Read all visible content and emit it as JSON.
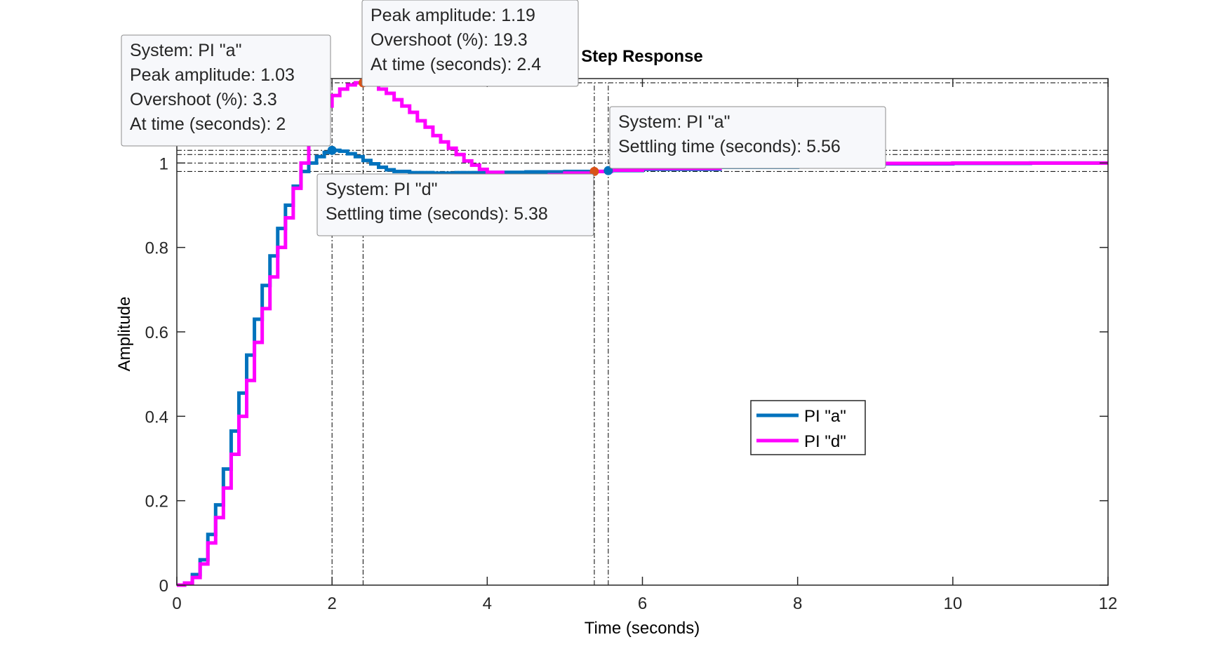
{
  "chart_data": {
    "type": "line",
    "title": "Step Response",
    "xlabel": "Time (seconds)",
    "ylabel": "Amplitude",
    "xlim": [
      0,
      12
    ],
    "ylim": [
      0,
      1.2
    ],
    "xticks": [
      0,
      2,
      4,
      6,
      8,
      10,
      12
    ],
    "yticks": [
      0,
      0.2,
      0.4,
      0.6,
      0.8,
      1
    ],
    "grid": false,
    "legend_position": "center-right",
    "series": [
      {
        "name": "PI \"a\"",
        "color": "#0072BD",
        "style": "stairs",
        "sample_time": 0.1,
        "x": [
          0,
          0.1,
          0.2,
          0.3,
          0.4,
          0.5,
          0.6,
          0.7,
          0.8,
          0.9,
          1.0,
          1.1,
          1.2,
          1.3,
          1.4,
          1.5,
          1.6,
          1.7,
          1.8,
          1.9,
          2.0,
          2.1,
          2.2,
          2.3,
          2.4,
          2.5,
          2.6,
          2.7,
          2.8,
          3.0,
          3.3,
          3.6,
          4.0,
          4.5,
          5.0,
          5.56,
          6.0,
          7.0,
          8.0,
          9.0,
          10.0,
          11.0,
          12.0
        ],
        "y": [
          0,
          0.005,
          0.025,
          0.06,
          0.12,
          0.19,
          0.275,
          0.365,
          0.455,
          0.545,
          0.63,
          0.71,
          0.78,
          0.845,
          0.9,
          0.945,
          0.98,
          1.0,
          1.015,
          1.025,
          1.03,
          1.028,
          1.022,
          1.015,
          1.006,
          0.998,
          0.99,
          0.984,
          0.98,
          0.977,
          0.976,
          0.977,
          0.978,
          0.979,
          0.98,
          0.982,
          0.985,
          0.99,
          0.995,
          0.998,
          0.999,
          1.0,
          1.0
        ]
      },
      {
        "name": "PI \"d\"",
        "color": "#FF00FF",
        "style": "stairs",
        "sample_time": 0.1,
        "x": [
          0,
          0.1,
          0.2,
          0.3,
          0.4,
          0.5,
          0.6,
          0.7,
          0.8,
          0.9,
          1.0,
          1.1,
          1.2,
          1.3,
          1.4,
          1.5,
          1.6,
          1.7,
          1.8,
          1.9,
          2.0,
          2.1,
          2.2,
          2.3,
          2.4,
          2.5,
          2.6,
          2.7,
          2.8,
          2.9,
          3.0,
          3.1,
          3.2,
          3.3,
          3.4,
          3.5,
          3.6,
          3.7,
          3.8,
          3.9,
          4.0,
          4.2,
          4.4,
          4.6,
          4.8,
          5.0,
          5.38,
          5.6,
          6.0,
          7.0,
          8.0,
          9.0,
          10.0,
          11.0,
          12.0
        ],
        "y": [
          0,
          0.005,
          0.018,
          0.05,
          0.1,
          0.16,
          0.23,
          0.31,
          0.4,
          0.485,
          0.575,
          0.655,
          0.73,
          0.8,
          0.87,
          0.94,
          1.0,
          1.055,
          1.1,
          1.135,
          1.16,
          1.175,
          1.185,
          1.19,
          1.19,
          1.185,
          1.175,
          1.165,
          1.15,
          1.135,
          1.12,
          1.1,
          1.085,
          1.065,
          1.05,
          1.035,
          1.02,
          1.005,
          0.995,
          0.985,
          0.978,
          0.97,
          0.965,
          0.968,
          0.972,
          0.976,
          0.98,
          0.983,
          0.987,
          0.993,
          0.997,
          0.999,
          1.0,
          1.0,
          1.0
        ]
      }
    ],
    "reference_lines": {
      "color": "#000000",
      "horizontal_y": [
        1.0,
        1.02,
        0.98,
        1.03,
        1.19
      ],
      "vertical_x": [
        2.0,
        2.4,
        5.38,
        5.56
      ]
    },
    "datatips": [
      {
        "name": "peak-pi-d",
        "series": "PI \"d\"",
        "marker_color": "#D95319",
        "point": [
          2.4,
          1.19
        ],
        "lines": [
          "Peak amplitude: 1.19",
          "Overshoot (%): 19.3",
          "At time (seconds): 2.4"
        ]
      },
      {
        "name": "peak-pi-a",
        "series": "PI \"a\"",
        "marker_color": "#0072BD",
        "point": [
          2.0,
          1.03
        ],
        "lines": [
          "System: PI \"a\"",
          "Peak amplitude: 1.03",
          "Overshoot (%): 3.3",
          "At time (seconds): 2"
        ]
      },
      {
        "name": "settling-pi-a",
        "series": "PI \"a\"",
        "marker_color": "#0072BD",
        "point": [
          5.56,
          0.982
        ],
        "lines": [
          "System: PI \"a\"",
          "Settling time (seconds): 5.56"
        ]
      },
      {
        "name": "settling-pi-d",
        "series": "PI \"d\"",
        "marker_color": "#D95319",
        "point": [
          5.38,
          0.98
        ],
        "lines": [
          "System: PI \"d\"",
          "Settling time (seconds): 5.38"
        ]
      }
    ]
  }
}
